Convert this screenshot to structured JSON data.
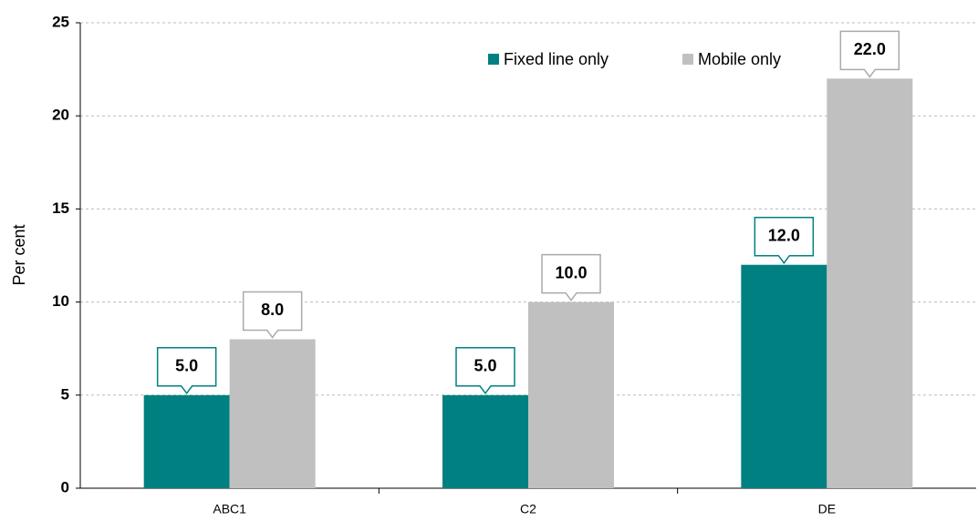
{
  "chart_data": {
    "type": "bar",
    "y_label": "Per cent",
    "categories": [
      "ABC1",
      "C2",
      "DE"
    ],
    "series": [
      {
        "name": "Fixed line only",
        "color": "#008080",
        "values": [
          5,
          5,
          12
        ],
        "value_labels": [
          "5.0",
          "5.0",
          "12.0"
        ]
      },
      {
        "name": "Mobile only",
        "color": "#c0c0c0",
        "values": [
          8,
          10,
          22
        ],
        "value_labels": [
          "8.0",
          "10.0",
          "22.0"
        ]
      }
    ],
    "ylim": [
      0,
      25
    ],
    "yticks": [
      0,
      5,
      10,
      15,
      20,
      25
    ],
    "grid": true
  }
}
